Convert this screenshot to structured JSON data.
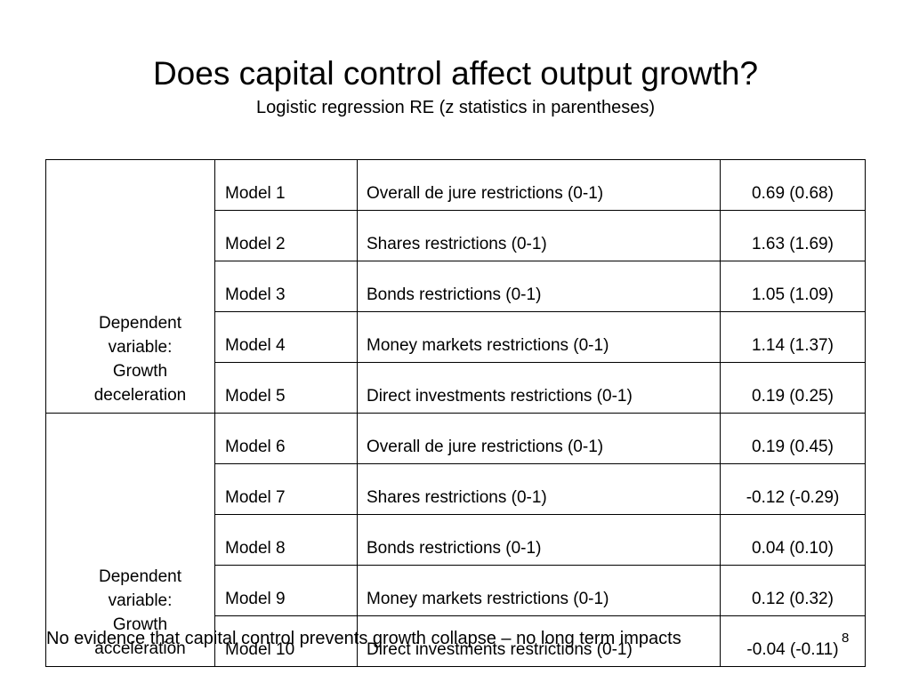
{
  "slide": {
    "title": "Does capital control affect output growth?",
    "subtitle": "Logistic regression RE (z statistics in parentheses)",
    "footer": "No evidence that capital control prevents growth collapse – no long term impacts",
    "page_number": "8"
  },
  "table": {
    "groups": [
      {
        "label_lines": [
          "Dependent",
          "variable:",
          "Growth",
          "deceleration"
        ],
        "rows": [
          {
            "model": "Model 1",
            "variable": "Overall de jure restrictions (0-1)",
            "coef": "0.69 (0.68)"
          },
          {
            "model": "Model 2",
            "variable": "Shares restrictions (0-1)",
            "coef": "1.63 (1.69)"
          },
          {
            "model": "Model 3",
            "variable": "Bonds restrictions (0-1)",
            "coef": "1.05 (1.09)"
          },
          {
            "model": "Model 4",
            "variable": "Money markets restrictions (0-1)",
            "coef": "1.14 (1.37)"
          },
          {
            "model": "Model 5",
            "variable": "Direct investments restrictions (0-1)",
            "coef": "0.19 (0.25)"
          }
        ]
      },
      {
        "label_lines": [
          "Dependent",
          "variable:",
          "Growth",
          "acceleration"
        ],
        "rows": [
          {
            "model": "Model 6",
            "variable": "Overall de jure restrictions (0-1)",
            "coef": "0.19 (0.45)"
          },
          {
            "model": "Model 7",
            "variable": "Shares restrictions (0-1)",
            "coef": "-0.12 (-0.29)"
          },
          {
            "model": "Model 8",
            "variable": "Bonds restrictions (0-1)",
            "coef": "0.04 (0.10)"
          },
          {
            "model": "Model 9",
            "variable": "Money markets restrictions (0-1)",
            "coef": "0.12 (0.32)"
          },
          {
            "model": "Model 10",
            "variable": "Direct investments restrictions (0-1)",
            "coef": "-0.04 (-0.11)"
          }
        ]
      }
    ]
  }
}
